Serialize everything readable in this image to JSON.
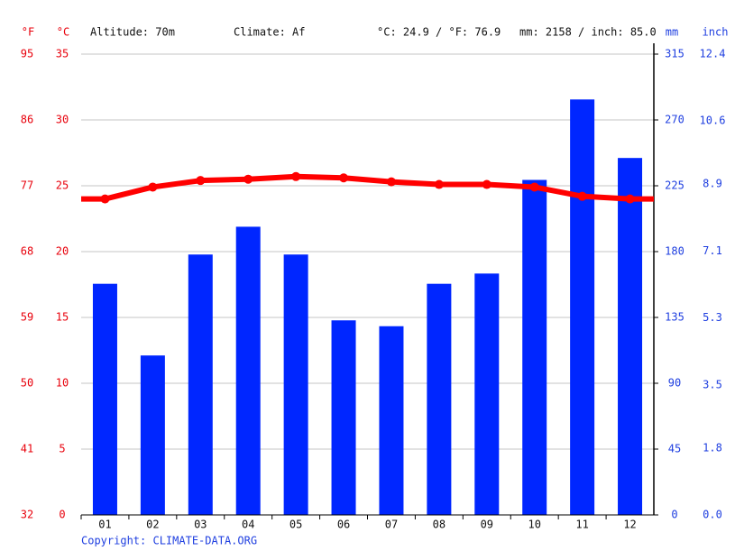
{
  "chart_data": {
    "type": "combo",
    "header": {
      "f_unit": "°F",
      "c_unit": "°C",
      "altitude": "Altitude: 70m",
      "climate": "Climate: Af",
      "temp_summary": "°C: 24.9 / °F: 76.9",
      "precip_summary": "mm: 2158 / inch: 85.0",
      "mm_unit": "mm",
      "inch_unit": "inch"
    },
    "copyright": "Copyright: CLIMATE-DATA.ORG",
    "categories": [
      "01",
      "02",
      "03",
      "04",
      "05",
      "06",
      "07",
      "08",
      "09",
      "10",
      "11",
      "12"
    ],
    "series": [
      {
        "type": "bar",
        "axis": "y2",
        "color": "#0026ff",
        "values": [
          158,
          109,
          178,
          197,
          178,
          133,
          129,
          158,
          165,
          229,
          284,
          244
        ]
      },
      {
        "type": "line",
        "axis": "y",
        "color": "#ff0000",
        "values": [
          24.0,
          24.9,
          25.4,
          25.5,
          25.7,
          25.6,
          25.3,
          25.1,
          25.1,
          24.9,
          24.2,
          24.0
        ]
      }
    ],
    "ylim": [
      0,
      35
    ],
    "yticks": [
      0,
      5,
      10,
      15,
      20,
      25,
      30,
      35
    ],
    "yflim": [
      32,
      95
    ],
    "yfticks": [
      32,
      41,
      50,
      59,
      68,
      77,
      86,
      95
    ],
    "y2lim": [
      0,
      315
    ],
    "y2ticks": [
      0,
      45,
      90,
      135,
      180,
      225,
      270,
      315
    ],
    "yinchlim": [
      0,
      12.4
    ],
    "yinchticks": [
      {
        "value": 0,
        "label": "0.0"
      },
      1.8,
      3.5,
      5.3,
      7.1,
      8.9,
      10.6,
      12.4
    ],
    "grid": true
  }
}
